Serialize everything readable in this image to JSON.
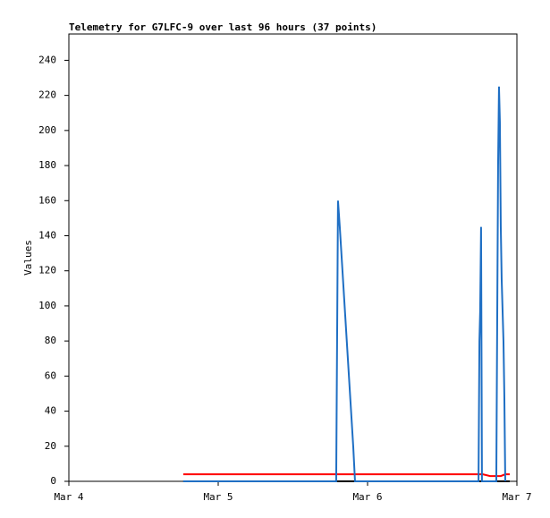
{
  "chart_data": {
    "type": "line",
    "title": "Telemetry for G7LFC-9 over last 96 hours (37 points)",
    "y_label": "Values",
    "xlim": [
      0,
      3
    ],
    "xticks": [
      {
        "value": 0,
        "label": "Mar 4"
      },
      {
        "value": 1,
        "label": "Mar 5"
      },
      {
        "value": 2,
        "label": "Mar 6"
      },
      {
        "value": 3,
        "label": "Mar 7"
      }
    ],
    "ylim": [
      0,
      255
    ],
    "yticks": [
      0,
      20,
      40,
      60,
      80,
      100,
      120,
      140,
      160,
      180,
      200,
      220,
      240
    ],
    "grid": false,
    "series": [
      {
        "color": "#000000",
        "x": [
          0.766,
          2.952
        ],
        "values": [
          0,
          0
        ]
      },
      {
        "color": "#ff0000",
        "x": [
          0.766,
          2.743,
          2.772,
          2.82,
          2.85,
          2.892,
          2.922,
          2.952
        ],
        "values": [
          4,
          4,
          4,
          3,
          3,
          3,
          4,
          4
        ]
      },
      {
        "color": "#1f6fc4",
        "x": [
          0.766,
          1.79,
          1.796,
          1.802,
          1.814,
          1.832,
          1.85,
          1.868,
          1.886,
          1.904,
          1.916,
          2.743,
          2.749,
          2.754,
          2.76,
          2.766,
          2.862,
          2.868,
          2.874,
          2.88,
          2.886,
          2.892,
          2.898,
          2.91,
          2.916,
          2.922
        ],
        "values": [
          0,
          0,
          80,
          160,
          145,
          120,
          95,
          70,
          45,
          20,
          0,
          0,
          80,
          97,
          145,
          0,
          0,
          90,
          180,
          225,
          205,
          145,
          115,
          80,
          48,
          0
        ]
      }
    ]
  }
}
